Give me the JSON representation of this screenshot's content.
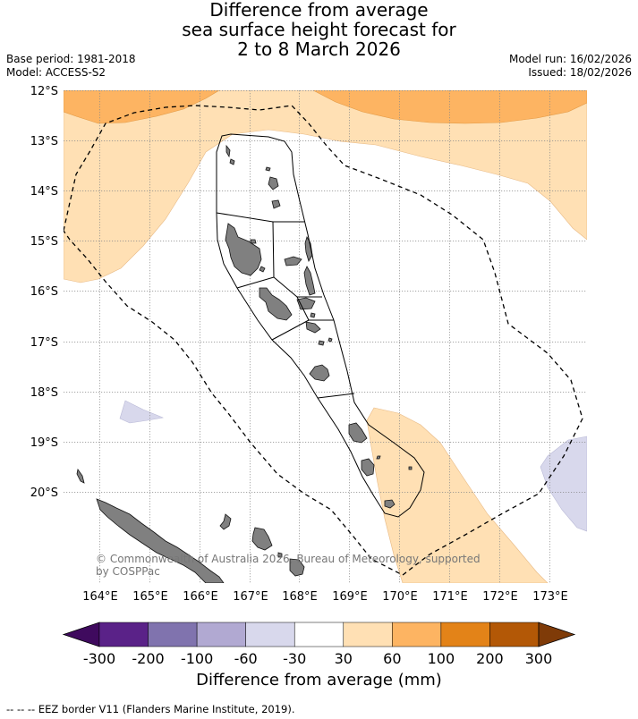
{
  "title": {
    "line1": "Difference from average",
    "line2": "sea surface height forecast for",
    "line3": "2 to 8 March 2026"
  },
  "meta": {
    "base_period": "Base period: 1981-2018",
    "model": "Model: ACCESS-S2",
    "model_run": "Model run: 16/02/2026",
    "issued": "Issued: 18/02/2026"
  },
  "axes": {
    "lat_labels": [
      "12°S",
      "13°S",
      "14°S",
      "15°S",
      "16°S",
      "17°S",
      "18°S",
      "19°S",
      "20°S"
    ],
    "lon_labels": [
      "164°E",
      "165°E",
      "166°E",
      "167°E",
      "168°E",
      "169°E",
      "170°E",
      "171°E",
      "172°E",
      "173°E"
    ]
  },
  "colorbar": {
    "tick_labels": [
      "-300",
      "-200",
      "-100",
      "-60",
      "-30",
      "30",
      "60",
      "100",
      "200",
      "300"
    ],
    "colors": [
      "#3f0a5e",
      "#5a2288",
      "#8073ae",
      "#b1a9d2",
      "#d8d8ec",
      "#ffffff",
      "#ffe0b4",
      "#fdb462",
      "#e38318",
      "#b35806",
      "#7f3b08"
    ],
    "label": "Difference from average (mm)"
  },
  "copyright": {
    "line1": "© Commonwealth of Australia 2026, Bureau of Meteorology, supported",
    "line2": "by COSPPac"
  },
  "footnote": "--  --  -- EEZ border V11 (Flanders Marine Institute, 2019).",
  "land_color": "#808080"
}
